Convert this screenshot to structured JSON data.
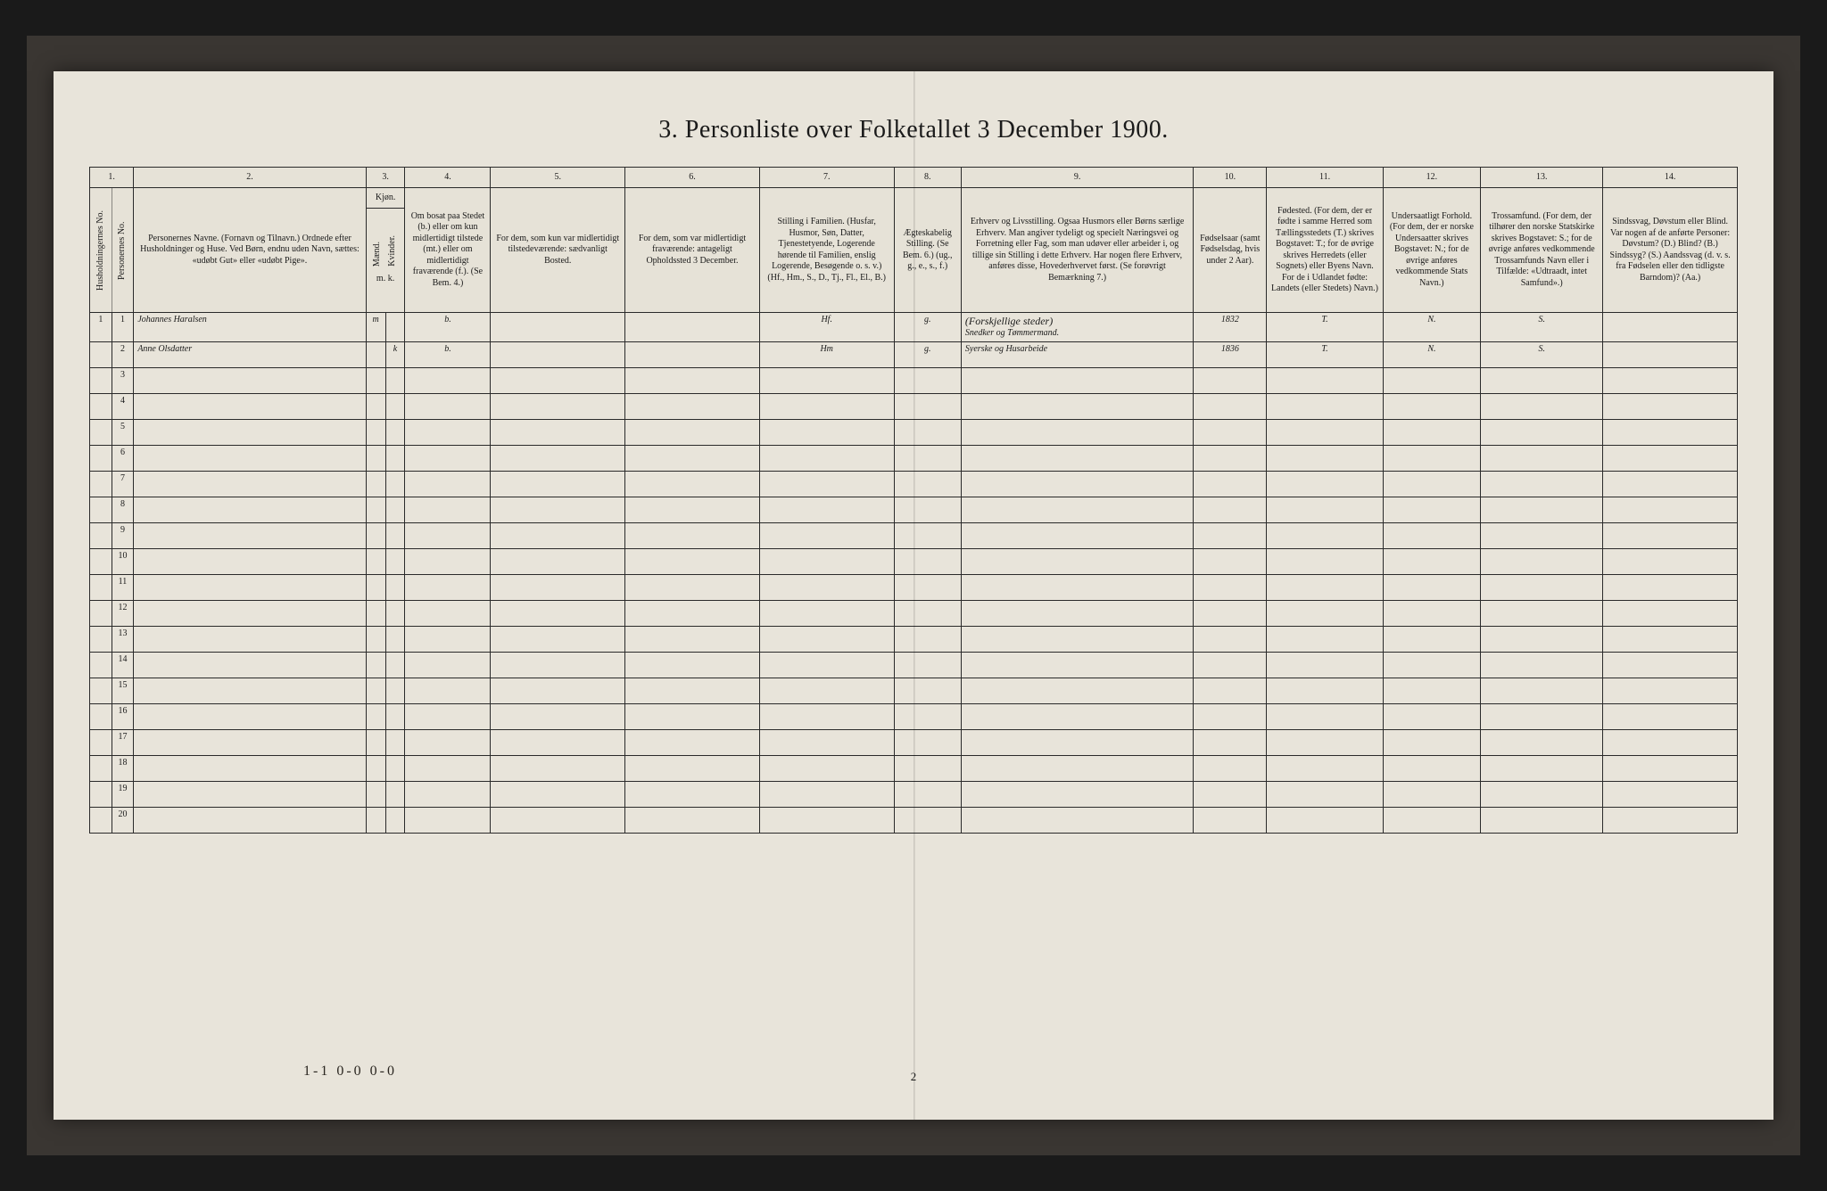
{
  "title": "3. Personliste over Folketallet 3 December 1900.",
  "colnums": [
    "1.",
    "2.",
    "3.",
    "4.",
    "5.",
    "6.",
    "7.",
    "8.",
    "9.",
    "10.",
    "11.",
    "12.",
    "13.",
    "14."
  ],
  "headers": {
    "c1a": "Husholdningernes No.",
    "c1b": "Personernes No.",
    "c2": "Personernes Navne.\n(Fornavn og Tilnavn.)\nOrdnede efter Husholdninger og Huse.\nVed Børn, endnu uden Navn, sættes: «udøbt Gut» eller «udøbt Pige».",
    "c3": "Kjøn.",
    "c3a": "Mænd.",
    "c3b": "Kvinder.",
    "c4": "Om bosat paa Stedet (b.) eller om kun midlertidigt tilstede (mt.) eller om midlertidigt fraværende (f.).\n(Se Bem. 4.)",
    "c5": "For dem, som kun var midlertidigt tilstedeværende:\nsædvanligt Bosted.",
    "c6": "For dem, som var midlertidigt fraværende:\nantageligt Opholdssted 3 December.",
    "c7": "Stilling i Familien.\n(Husfar, Husmor, Søn, Datter, Tjenestetyende, Logerende hørende til Familien, enslig Logerende, Besøgende o. s. v.)\n(Hf., Hm., S., D., Tj., Fl., El., B.)",
    "c8": "Ægteskabelig Stilling.\n(Se Bem. 6.)\n(ug., g., e., s., f.)",
    "c9": "Erhverv og Livsstilling.\nOgsaa Husmors eller Børns særlige Erhverv.\nMan angiver tydeligt og specielt Næringsvei og Forretning eller Fag, som man udøver eller arbeider i, og tillige sin Stilling i dette Erhverv.\nHar nogen flere Erhverv, anføres disse, Hovederhvervet først.\n(Se forøvrigt Bemærkning 7.)",
    "c10": "Fødselsaar\n(samt Fødselsdag, hvis under 2 Aar).",
    "c11": "Fødested.\n(For dem, der er fødte i samme Herred som Tællingsstedets (T.) skrives Bogstavet: T.; for de øvrige skrives Herredets (eller Sognets) eller Byens Navn.\nFor de i Udlandet fødte: Landets (eller Stedets) Navn.)",
    "c12": "Undersaatligt Forhold.\n(For dem, der er norske Undersaatter skrives Bogstavet: N.; for de øvrige anføres vedkommende Stats Navn.)",
    "c13": "Trossamfund.\n(For dem, der tilhører den norske Statskirke skrives Bogstavet: S.; for de øvrige anføres vedkommende Trossamfunds Navn eller i Tilfælde: «Udtraadt, intet Samfund».)",
    "c14": "Sindssvag, Døvstum eller Blind.\nVar nogen af de anførte Personer:\nDøvstum? (D.)\nBlind? (B.)\nSindssyg? (S.)\nAandssvag (d. v. s. fra Fødselen eller den tidligste Barndom)? (Aa.)"
  },
  "mk": "m. k.",
  "rows": [
    {
      "hnum": "1",
      "pnum": "1",
      "name": "Johannes Haralsen",
      "sex_m": "m",
      "sex_k": "",
      "bosat": "b.",
      "c5": "",
      "c6": "",
      "c7": "Hf.",
      "c8": "g.",
      "c9_top": "(Forskjellige steder)",
      "c9": "Snedker og Tømmermand.",
      "c10": "1832",
      "c11": "T.",
      "c12": "N.",
      "c13": "S.",
      "c14": ""
    },
    {
      "hnum": "",
      "pnum": "2",
      "name": "Anne Olsdatter",
      "sex_m": "",
      "sex_k": "k",
      "bosat": "b.",
      "c5": "",
      "c6": "",
      "c7": "Hm",
      "c8": "g.",
      "c9": "Syerske og Husarbeide",
      "c10": "1836",
      "c11": "T.",
      "c12": "N.",
      "c13": "S.",
      "c14": ""
    }
  ],
  "empty_row_nums": [
    "3",
    "4",
    "5",
    "6",
    "7",
    "8",
    "9",
    "10",
    "11",
    "12",
    "13",
    "14",
    "15",
    "16",
    "17",
    "18",
    "19",
    "20"
  ],
  "footer_tally": "1-1   0-0   0-0",
  "page_num": "2",
  "colors": {
    "page_bg": "#e8e4da",
    "frame_bg": "#3a3632",
    "outer_bg": "#1a1a1a",
    "border": "#2a2a2a",
    "ink": "#1a1a1a",
    "handwriting": "#2a2620"
  }
}
